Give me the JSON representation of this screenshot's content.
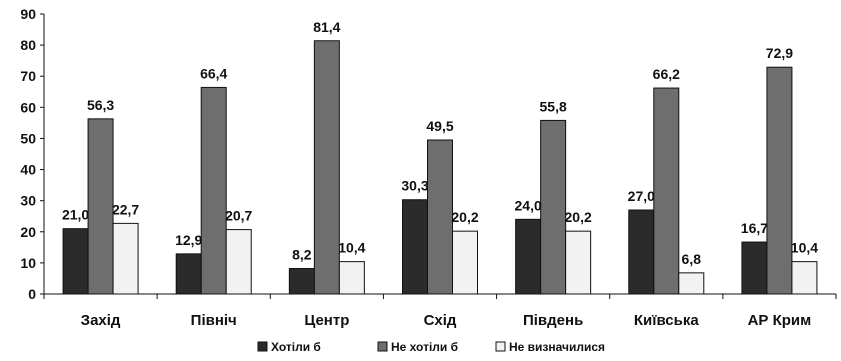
{
  "chart_data": {
    "type": "bar",
    "categories": [
      "Захід",
      "Північ",
      "Центр",
      "Схід",
      "Південь",
      "Київська",
      "АР Крим"
    ],
    "series": [
      {
        "name": "Хотіли б",
        "values": [
          21.0,
          12.9,
          8.2,
          30.3,
          24.0,
          27.0,
          16.7
        ],
        "labels": [
          "21,0",
          "12,9",
          "8,2",
          "30,3",
          "24,0",
          "27,0",
          "16,7"
        ]
      },
      {
        "name": "Не хотіли б",
        "values": [
          56.3,
          66.4,
          81.4,
          49.5,
          55.8,
          66.2,
          72.9
        ],
        "labels": [
          "56,3",
          "66,4",
          "81,4",
          "49,5",
          "55,8",
          "66,2",
          "72,9"
        ]
      },
      {
        "name": "Не визначилися",
        "values": [
          22.7,
          20.7,
          10.4,
          20.2,
          20.2,
          6.8,
          10.4
        ],
        "labels": [
          "22,7",
          "20,7",
          "10,4",
          "20,2",
          "20,2",
          "6,8",
          "10,4"
        ]
      }
    ],
    "ylim": [
      0,
      90
    ],
    "yticks": [
      "0",
      "10",
      "20",
      "30",
      "40",
      "50",
      "60",
      "70",
      "80",
      "90"
    ],
    "legend_position": "bottom",
    "grid": false,
    "colors": [
      "#2b2b2b",
      "#6e6e6e",
      "#f2f2f2"
    ]
  }
}
